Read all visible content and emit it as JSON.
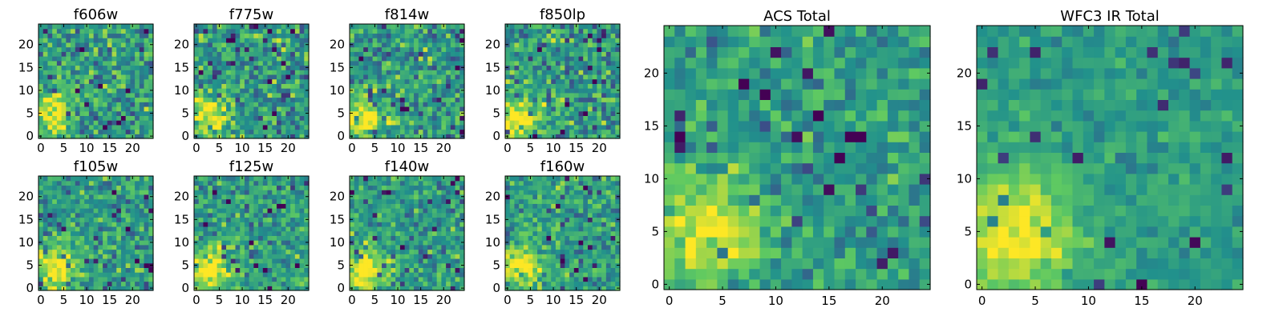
{
  "chart_data": [
    {
      "type": "heatmap",
      "title": "f606w",
      "x_ticks": [
        0,
        5,
        10,
        15,
        20
      ],
      "y_ticks": [
        0,
        5,
        10,
        15,
        20
      ],
      "xlim": [
        -0.5,
        24.5
      ],
      "ylim": [
        -0.5,
        24.5
      ],
      "grid_size": 25,
      "bright_center": [
        3,
        5
      ],
      "bright_sigma": 3.2,
      "noise": 0.4,
      "seed": 11
    },
    {
      "type": "heatmap",
      "title": "f775w",
      "x_ticks": [
        0,
        5,
        10,
        15,
        20
      ],
      "y_ticks": [
        0,
        5,
        10,
        15,
        20
      ],
      "xlim": [
        -0.5,
        24.5
      ],
      "ylim": [
        -0.5,
        24.5
      ],
      "grid_size": 25,
      "bright_center": [
        3,
        4
      ],
      "bright_sigma": 3.0,
      "noise": 0.42,
      "seed": 23
    },
    {
      "type": "heatmap",
      "title": "f814w",
      "x_ticks": [
        0,
        5,
        10,
        15,
        20
      ],
      "y_ticks": [
        0,
        5,
        10,
        15,
        20
      ],
      "xlim": [
        -0.5,
        24.5
      ],
      "ylim": [
        -0.5,
        24.5
      ],
      "grid_size": 25,
      "bright_center": [
        3,
        4
      ],
      "bright_sigma": 3.0,
      "noise": 0.42,
      "seed": 37
    },
    {
      "type": "heatmap",
      "title": "f850lp",
      "x_ticks": [
        0,
        5,
        10,
        15,
        20
      ],
      "y_ticks": [
        0,
        5,
        10,
        15,
        20
      ],
      "xlim": [
        -0.5,
        24.5
      ],
      "ylim": [
        -0.5,
        24.5
      ],
      "grid_size": 25,
      "bright_center": [
        3,
        4
      ],
      "bright_sigma": 2.8,
      "noise": 0.45,
      "seed": 41
    },
    {
      "type": "heatmap",
      "title": "f105w",
      "x_ticks": [
        0,
        5,
        10,
        15,
        20
      ],
      "y_ticks": [
        0,
        5,
        10,
        15,
        20
      ],
      "xlim": [
        -0.5,
        24.5
      ],
      "ylim": [
        -0.5,
        24.5
      ],
      "grid_size": 25,
      "bright_center": [
        3,
        4
      ],
      "bright_sigma": 3.6,
      "noise": 0.35,
      "seed": 53
    },
    {
      "type": "heatmap",
      "title": "f125w",
      "x_ticks": [
        0,
        5,
        10,
        15,
        20
      ],
      "y_ticks": [
        0,
        5,
        10,
        15,
        20
      ],
      "xlim": [
        -0.5,
        24.5
      ],
      "ylim": [
        -0.5,
        24.5
      ],
      "grid_size": 25,
      "bright_center": [
        3,
        4
      ],
      "bright_sigma": 3.6,
      "noise": 0.35,
      "seed": 67
    },
    {
      "type": "heatmap",
      "title": "f140w",
      "x_ticks": [
        0,
        5,
        10,
        15,
        20
      ],
      "y_ticks": [
        0,
        5,
        10,
        15,
        20
      ],
      "xlim": [
        -0.5,
        24.5
      ],
      "ylim": [
        -0.5,
        24.5
      ],
      "grid_size": 25,
      "bright_center": [
        3,
        4
      ],
      "bright_sigma": 3.6,
      "noise": 0.33,
      "seed": 71
    },
    {
      "type": "heatmap",
      "title": "f160w",
      "x_ticks": [
        0,
        5,
        10,
        15,
        20
      ],
      "y_ticks": [
        0,
        5,
        10,
        15,
        20
      ],
      "xlim": [
        -0.5,
        24.5
      ],
      "ylim": [
        -0.5,
        24.5
      ],
      "grid_size": 25,
      "bright_center": [
        3,
        5
      ],
      "bright_sigma": 3.4,
      "noise": 0.36,
      "seed": 83
    },
    {
      "type": "heatmap",
      "title": "ACS Total",
      "x_ticks": [
        0,
        5,
        10,
        15,
        20
      ],
      "y_ticks": [
        0,
        5,
        10,
        15,
        20
      ],
      "xlim": [
        -0.5,
        24.5
      ],
      "ylim": [
        -0.5,
        24.5
      ],
      "grid_size": 25,
      "bright_center": [
        4,
        5
      ],
      "bright_sigma": 3.6,
      "noise": 0.3,
      "seed": 97
    },
    {
      "type": "heatmap",
      "title": "WFC3 IR Total",
      "x_ticks": [
        0,
        5,
        10,
        15,
        20
      ],
      "y_ticks": [
        0,
        5,
        10,
        15,
        20
      ],
      "xlim": [
        -0.5,
        24.5
      ],
      "ylim": [
        -0.5,
        24.5
      ],
      "grid_size": 25,
      "bright_center": [
        3,
        5
      ],
      "bright_sigma": 4.2,
      "noise": 0.18,
      "seed": 109
    }
  ],
  "colormap": [
    "#440154",
    "#3b528b",
    "#21918c",
    "#5ec962",
    "#fde725"
  ]
}
